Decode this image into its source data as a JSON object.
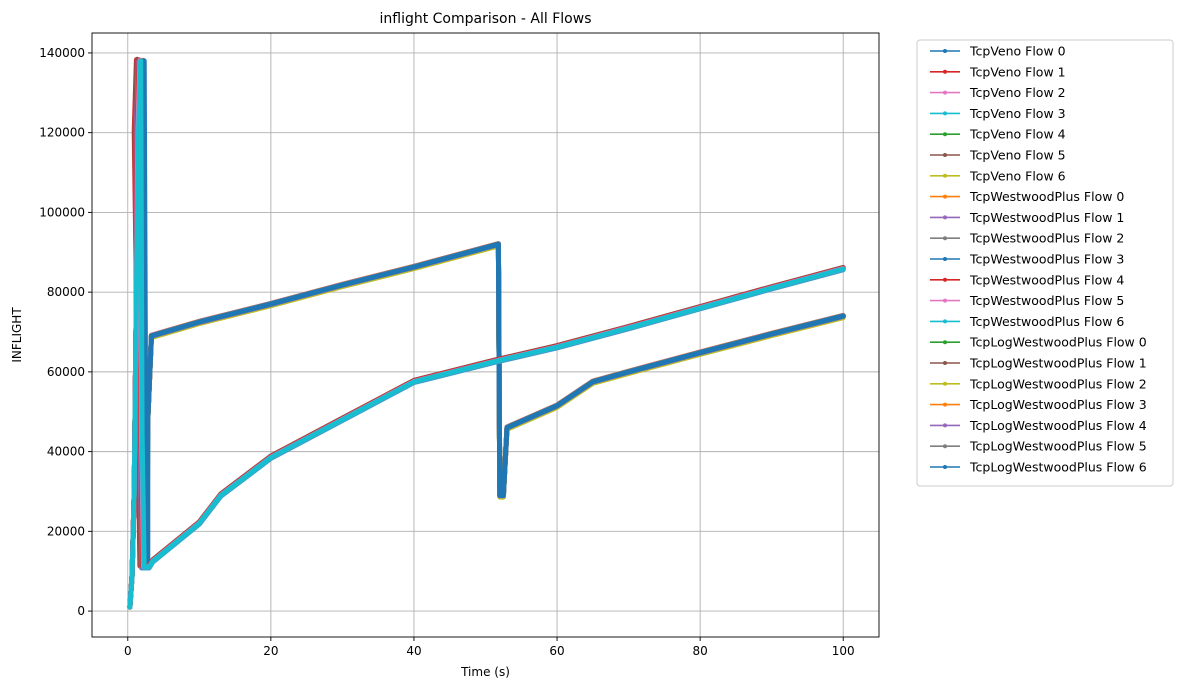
{
  "chart_data": {
    "type": "line",
    "title": "inflight Comparison - All Flows",
    "xlabel": "Time (s)",
    "ylabel": "INFLIGHT",
    "xlim": [
      -5,
      105
    ],
    "ylim": [
      -6500,
      145000
    ],
    "xticks": [
      0,
      20,
      40,
      60,
      80,
      100
    ],
    "yticks": [
      0,
      20000,
      40000,
      60000,
      80000,
      100000,
      120000,
      140000
    ],
    "xtick_labels": [
      "0",
      "20",
      "40",
      "60",
      "80",
      "100"
    ],
    "ytick_labels": [
      "0",
      "20000",
      "40000",
      "60000",
      "80000",
      "100000",
      "120000",
      "140000"
    ],
    "grid": true,
    "legend_position": "outside-right-top",
    "series": [
      {
        "name": "TcpVeno Flow 0",
        "color": "#1f77b4",
        "group": "high",
        "t_peak": 1.5,
        "shift": 0
      },
      {
        "name": "TcpVeno Flow 1",
        "color": "#d62728",
        "group": "low",
        "t_peak": 0.9,
        "shift": 300
      },
      {
        "name": "TcpVeno Flow 2",
        "color": "#e377c2",
        "group": "high",
        "t_peak": 1.3,
        "shift": 200
      },
      {
        "name": "TcpVeno Flow 3",
        "color": "#17becf",
        "group": "low",
        "t_peak": 1.1,
        "shift": -200
      },
      {
        "name": "TcpVeno Flow 4",
        "color": "#2ca02c",
        "group": "high",
        "t_peak": 1.1,
        "shift": 100
      },
      {
        "name": "TcpVeno Flow 5",
        "color": "#8c564b",
        "group": "low",
        "t_peak": 1.0,
        "shift": 400
      },
      {
        "name": "TcpVeno Flow 6",
        "color": "#bcbd22",
        "group": "high",
        "t_peak": 1.4,
        "shift": -300
      },
      {
        "name": "TcpWestwoodPlus Flow 0",
        "color": "#ff7f0e",
        "group": "high",
        "t_peak": 1.6,
        "shift": 150
      },
      {
        "name": "TcpWestwoodPlus Flow 1",
        "color": "#9467bd",
        "group": "low",
        "t_peak": 1.2,
        "shift": -100
      },
      {
        "name": "TcpWestwoodPlus Flow 2",
        "color": "#7f7f7f",
        "group": "high",
        "t_peak": 1.7,
        "shift": -150
      },
      {
        "name": "TcpWestwoodPlus Flow 3",
        "color": "#1f77b4",
        "group": "high",
        "t_peak": 1.8,
        "shift": 0
      },
      {
        "name": "TcpWestwoodPlus Flow 4",
        "color": "#d62728",
        "group": "low",
        "t_peak": 1.3,
        "shift": 250
      },
      {
        "name": "TcpWestwoodPlus Flow 5",
        "color": "#e377c2",
        "group": "low",
        "t_peak": 1.4,
        "shift": 100
      },
      {
        "name": "TcpWestwoodPlus Flow 6",
        "color": "#17becf",
        "group": "low",
        "t_peak": 1.5,
        "shift": 0
      },
      {
        "name": "TcpLogWestwoodPlus Flow 0",
        "color": "#2ca02c",
        "group": "high",
        "t_peak": 1.9,
        "shift": 50
      },
      {
        "name": "TcpLogWestwoodPlus Flow 1",
        "color": "#8c564b",
        "group": "high",
        "t_peak": 1.6,
        "shift": -50
      },
      {
        "name": "TcpLogWestwoodPlus Flow 2",
        "color": "#bcbd22",
        "group": "high",
        "t_peak": 1.7,
        "shift": -400
      },
      {
        "name": "TcpLogWestwoodPlus Flow 3",
        "color": "#ff7f0e",
        "group": "high",
        "t_peak": 1.5,
        "shift": 80
      },
      {
        "name": "TcpLogWestwoodPlus Flow 4",
        "color": "#9467bd",
        "group": "high",
        "t_peak": 1.8,
        "shift": -80
      },
      {
        "name": "TcpLogWestwoodPlus Flow 5",
        "color": "#7f7f7f",
        "group": "high",
        "t_peak": 1.9,
        "shift": 120
      },
      {
        "name": "TcpLogWestwoodPlus Flow 6",
        "color": "#1f77b4",
        "group": "high",
        "t_peak": 2.0,
        "shift": 0
      }
    ],
    "profiles": {
      "high": [
        [
          0.3,
          1000
        ],
        [
          0.6,
          9000
        ],
        [
          0.9,
          30000
        ],
        [
          1.2,
          80000
        ],
        [
          1.5,
          120000
        ],
        [
          1.8,
          138000
        ],
        [
          2.0,
          45000
        ],
        [
          2.3,
          12000
        ],
        [
          2.8,
          48000
        ],
        [
          3.3,
          69000
        ],
        [
          10,
          72500
        ],
        [
          20,
          77000
        ],
        [
          30,
          81800
        ],
        [
          40,
          86300
        ],
        [
          51.8,
          92000
        ],
        [
          52.0,
          29000
        ],
        [
          52.5,
          29000
        ],
        [
          53.0,
          46000
        ],
        [
          60,
          51500
        ],
        [
          65,
          57500
        ],
        [
          70,
          60000
        ],
        [
          80,
          64800
        ],
        [
          90,
          69500
        ],
        [
          100,
          74000
        ]
      ],
      "low": [
        [
          0.3,
          1000
        ],
        [
          0.6,
          9000
        ],
        [
          0.9,
          30000
        ],
        [
          1.2,
          80000
        ],
        [
          1.5,
          120000
        ],
        [
          1.8,
          138000
        ],
        [
          2.0,
          45000
        ],
        [
          2.3,
          11000
        ],
        [
          3.0,
          11000
        ],
        [
          3.5,
          12500
        ],
        [
          10,
          22000
        ],
        [
          13,
          29000
        ],
        [
          20,
          38500
        ],
        [
          30,
          48000
        ],
        [
          40,
          57500
        ],
        [
          51.8,
          62800
        ],
        [
          60,
          66200
        ],
        [
          70,
          71000
        ],
        [
          80,
          76000
        ],
        [
          90,
          81000
        ],
        [
          100,
          85800
        ]
      ]
    }
  }
}
